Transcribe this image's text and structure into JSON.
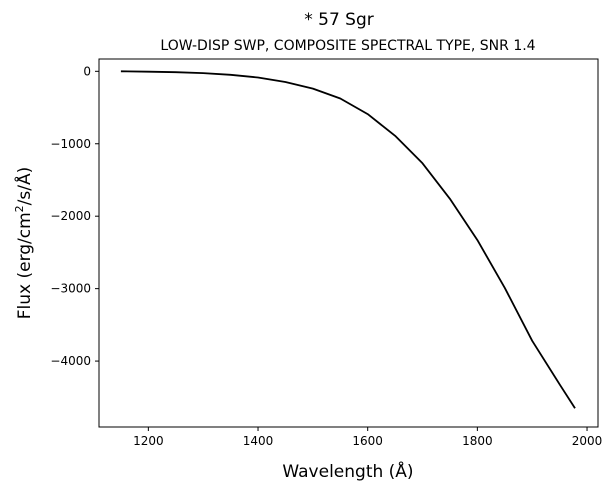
{
  "chart_data": {
    "type": "line",
    "title": "*  57 Sgr",
    "subtitle": "LOW-DISP SWP, COMPOSITE SPECTRAL TYPE, SNR 1.4",
    "xlabel": "Wavelength (Å)",
    "ylabel_prefix": "Flux (erg/cm",
    "ylabel_sup": "2",
    "ylabel_suffix": "/s/Å)",
    "xlim": [
      1110,
      2020
    ],
    "ylim": [
      -4910,
      170
    ],
    "xticks": [
      1200,
      1400,
      1600,
      1800,
      2000
    ],
    "xtick_labels": [
      "1200",
      "1400",
      "1600",
      "1800",
      "2000"
    ],
    "yticks": [
      0,
      -1000,
      -2000,
      -3000,
      -4000
    ],
    "ytick_labels": [
      "0",
      "−1000",
      "−2000",
      "−3000",
      "−4000"
    ],
    "grid": false,
    "series": [
      {
        "color": "#000000",
        "x": [
          1150,
          1200,
          1250,
          1300,
          1350,
          1400,
          1450,
          1500,
          1550,
          1600,
          1650,
          1700,
          1750,
          1800,
          1850,
          1900,
          1950,
          1978
        ],
        "y": [
          0,
          -5,
          -12,
          -25,
          -48,
          -85,
          -148,
          -238,
          -375,
          -590,
          -890,
          -1270,
          -1760,
          -2330,
          -2990,
          -3720,
          -4320,
          -4650
        ]
      }
    ]
  }
}
